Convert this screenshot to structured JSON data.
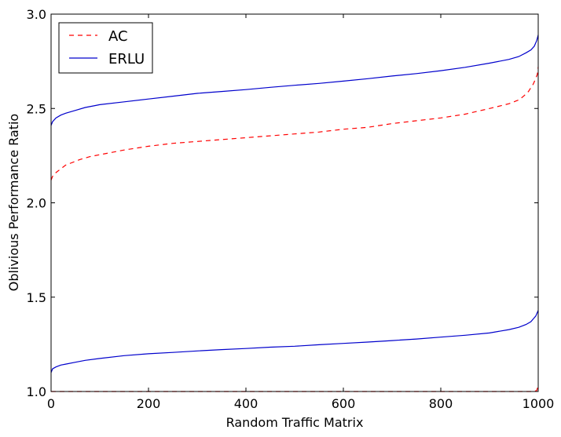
{
  "chart_data": {
    "type": "line",
    "title": "",
    "xlabel": "Random Traffic Matrix",
    "ylabel": "Oblivious Performance Ratio",
    "xlim": [
      0,
      1000
    ],
    "ylim": [
      1.0,
      3.0
    ],
    "xticks": [
      0,
      200,
      400,
      600,
      800,
      1000
    ],
    "xtick_labels": [
      "0",
      "200",
      "400",
      "600",
      "800",
      "1000"
    ],
    "yticks": [
      1.0,
      1.5,
      2.0,
      2.5,
      3.0
    ],
    "ytick_labels": [
      "1.0",
      "1.5",
      "2.0",
      "2.5",
      "3.0"
    ],
    "grid": false,
    "legend_position": "top-left",
    "legend": [
      {
        "label": "AC",
        "color": "#ff0000",
        "style": "dashed"
      },
      {
        "label": "ERLU",
        "color": "#0000cc",
        "style": "solid"
      }
    ],
    "series": [
      {
        "name": "AC",
        "color": "#ff0000",
        "style": "dashed",
        "x": [
          0,
          3,
          10,
          20,
          30,
          40,
          50,
          60,
          80,
          100,
          150,
          200,
          250,
          300,
          350,
          400,
          450,
          500,
          550,
          600,
          650,
          700,
          750,
          800,
          850,
          900,
          940,
          960,
          970,
          980,
          990,
          995,
          998,
          1000
        ],
        "y": [
          2.12,
          2.14,
          2.16,
          2.18,
          2.2,
          2.21,
          2.22,
          2.23,
          2.245,
          2.255,
          2.28,
          2.3,
          2.315,
          2.325,
          2.335,
          2.345,
          2.355,
          2.365,
          2.375,
          2.39,
          2.4,
          2.42,
          2.435,
          2.45,
          2.47,
          2.5,
          2.525,
          2.545,
          2.565,
          2.59,
          2.63,
          2.66,
          2.68,
          2.72
        ]
      },
      {
        "name": "",
        "color": "#ff0000",
        "style": "dashed",
        "x": [
          0,
          100,
          200,
          300,
          400,
          500,
          600,
          700,
          800,
          900,
          990,
          997,
          1000
        ],
        "y": [
          1.0,
          1.0,
          1.0,
          1.0,
          1.0,
          1.0,
          1.0,
          1.0,
          1.0,
          1.0,
          1.0,
          1.005,
          1.03
        ]
      },
      {
        "name": "ERLU",
        "color": "#0000cc",
        "style": "solid",
        "x": [
          0,
          3,
          10,
          20,
          30,
          50,
          70,
          90,
          100,
          150,
          200,
          250,
          300,
          350,
          400,
          450,
          500,
          550,
          600,
          650,
          700,
          750,
          800,
          850,
          900,
          940,
          960,
          975,
          985,
          992,
          997,
          1000
        ],
        "y": [
          2.41,
          2.43,
          2.45,
          2.465,
          2.475,
          2.49,
          2.505,
          2.515,
          2.52,
          2.535,
          2.55,
          2.565,
          2.58,
          2.59,
          2.6,
          2.612,
          2.623,
          2.633,
          2.645,
          2.658,
          2.672,
          2.685,
          2.7,
          2.718,
          2.74,
          2.76,
          2.775,
          2.795,
          2.81,
          2.83,
          2.86,
          2.89
        ]
      },
      {
        "name": "",
        "color": "#0000cc",
        "style": "solid",
        "x": [
          0,
          3,
          10,
          20,
          30,
          50,
          70,
          100,
          150,
          200,
          250,
          300,
          350,
          400,
          450,
          500,
          550,
          600,
          650,
          700,
          750,
          800,
          850,
          900,
          940,
          960,
          975,
          985,
          990,
          995,
          1000
        ],
        "y": [
          1.1,
          1.12,
          1.13,
          1.14,
          1.145,
          1.155,
          1.165,
          1.175,
          1.19,
          1.2,
          1.207,
          1.215,
          1.222,
          1.228,
          1.235,
          1.24,
          1.248,
          1.255,
          1.262,
          1.27,
          1.278,
          1.288,
          1.298,
          1.31,
          1.328,
          1.34,
          1.355,
          1.37,
          1.385,
          1.4,
          1.43
        ]
      }
    ]
  }
}
